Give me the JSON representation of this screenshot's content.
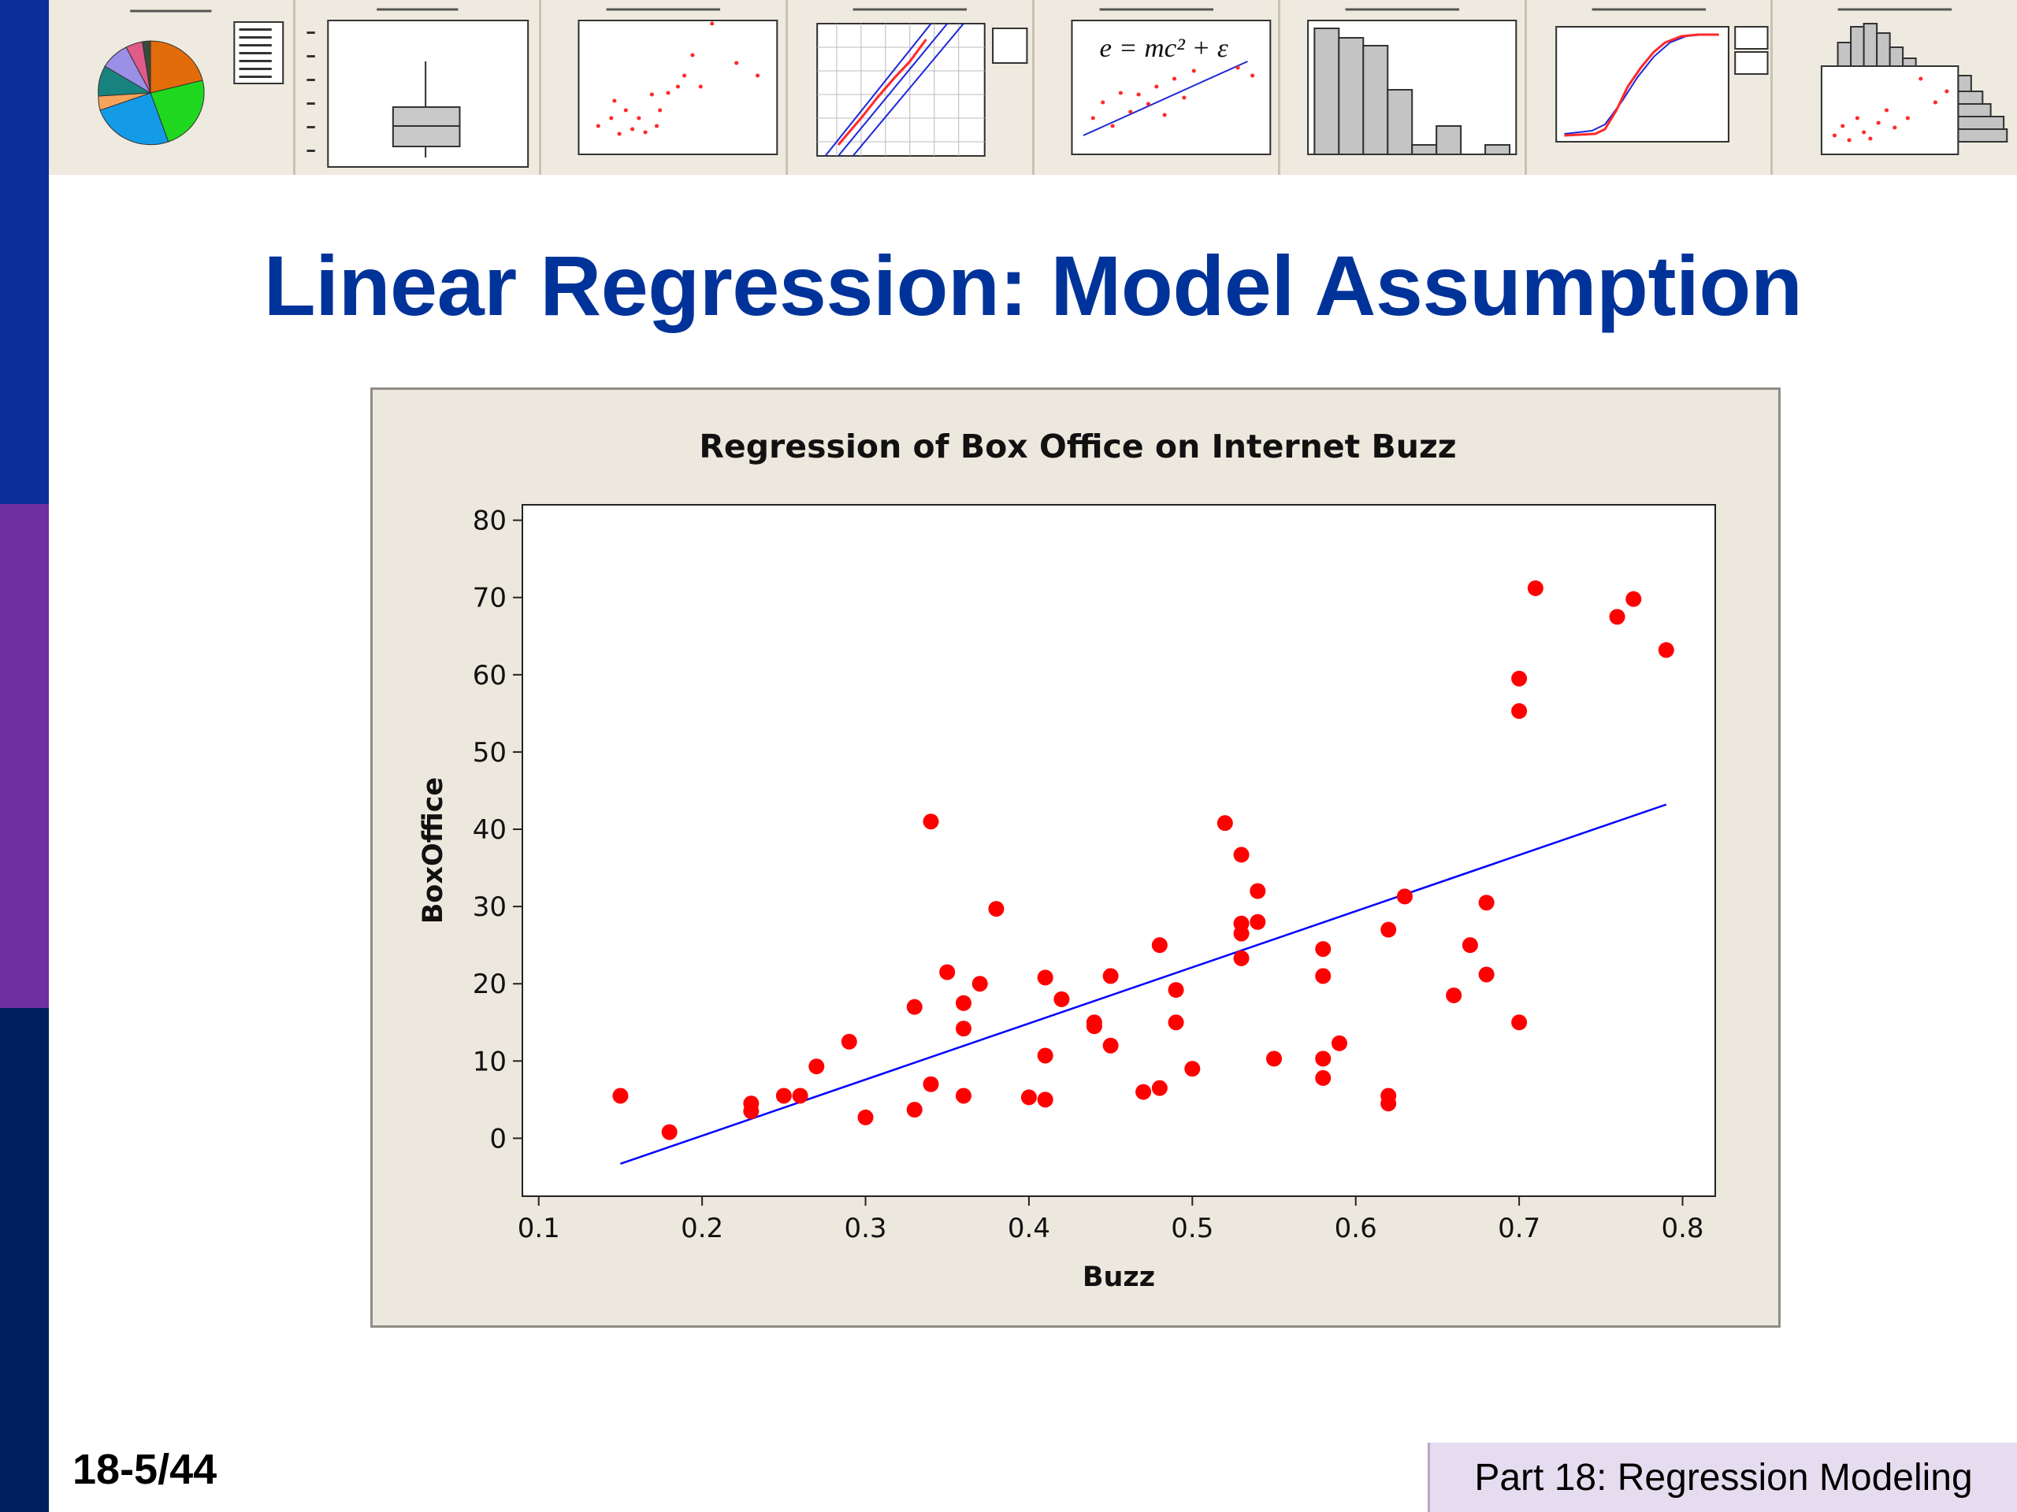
{
  "slide": {
    "title": "Linear Regression: Model Assumption",
    "slide_number": "18-5/44",
    "footer": "Part 18: Regression Modeling"
  },
  "thumbnails": [
    {
      "kind": "pie"
    },
    {
      "kind": "boxplot"
    },
    {
      "kind": "scatter"
    },
    {
      "kind": "probability-plot"
    },
    {
      "kind": "scatter-fit",
      "formula": "e = mc² + ε"
    },
    {
      "kind": "histogram"
    },
    {
      "kind": "ecdf"
    },
    {
      "kind": "marginal-plot"
    }
  ],
  "chart_data": {
    "type": "scatter",
    "title": "Regression of Box Office on Internet Buzz",
    "xlabel": "Buzz",
    "ylabel": "BoxOffice",
    "xlim": [
      0.09,
      0.82
    ],
    "ylim": [
      -7.5,
      82
    ],
    "xticks": [
      0.1,
      0.2,
      0.3,
      0.4,
      0.5,
      0.6,
      0.7,
      0.8
    ],
    "yticks": [
      0,
      10,
      20,
      30,
      40,
      50,
      60,
      70,
      80
    ],
    "grid": false,
    "colors": {
      "points": "#ff0000",
      "fit_line": "#0000ff",
      "plot_bg": "#ffffff",
      "frame_bg": "#ece8dd"
    },
    "series": [
      {
        "marker": "circle",
        "x": [
          0.15,
          0.18,
          0.23,
          0.23,
          0.25,
          0.26,
          0.27,
          0.29,
          0.3,
          0.33,
          0.33,
          0.34,
          0.34,
          0.35,
          0.36,
          0.36,
          0.36,
          0.37,
          0.38,
          0.4,
          0.41,
          0.41,
          0.41,
          0.42,
          0.44,
          0.44,
          0.45,
          0.45,
          0.47,
          0.48,
          0.48,
          0.49,
          0.49,
          0.5,
          0.52,
          0.53,
          0.53,
          0.53,
          0.53,
          0.54,
          0.54,
          0.55,
          0.58,
          0.58,
          0.58,
          0.58,
          0.59,
          0.62,
          0.62,
          0.62,
          0.63,
          0.66,
          0.67,
          0.68,
          0.68,
          0.7,
          0.7,
          0.7,
          0.71,
          0.76,
          0.77,
          0.79
        ],
        "y": [
          5.5,
          0.8,
          4.5,
          3.5,
          5.5,
          5.5,
          9.3,
          12.5,
          2.7,
          17,
          3.7,
          41,
          7,
          21.5,
          17.5,
          14.2,
          5.5,
          20,
          29.7,
          5.3,
          20.8,
          10.7,
          5,
          18,
          15,
          14.5,
          21,
          12,
          6,
          25,
          6.5,
          19.2,
          15,
          9,
          40.8,
          36.7,
          27.8,
          26.5,
          23.3,
          32,
          28,
          10.3,
          24.5,
          21,
          10.3,
          7.8,
          12.3,
          27,
          5.5,
          4.5,
          31.3,
          18.5,
          25,
          30.5,
          21.2,
          59.5,
          55.3,
          15,
          71.2,
          67.5,
          69.8,
          63.2
        ]
      }
    ],
    "fit_line": {
      "x": [
        0.15,
        0.79
      ],
      "y": [
        -3.3,
        43.2
      ]
    }
  }
}
